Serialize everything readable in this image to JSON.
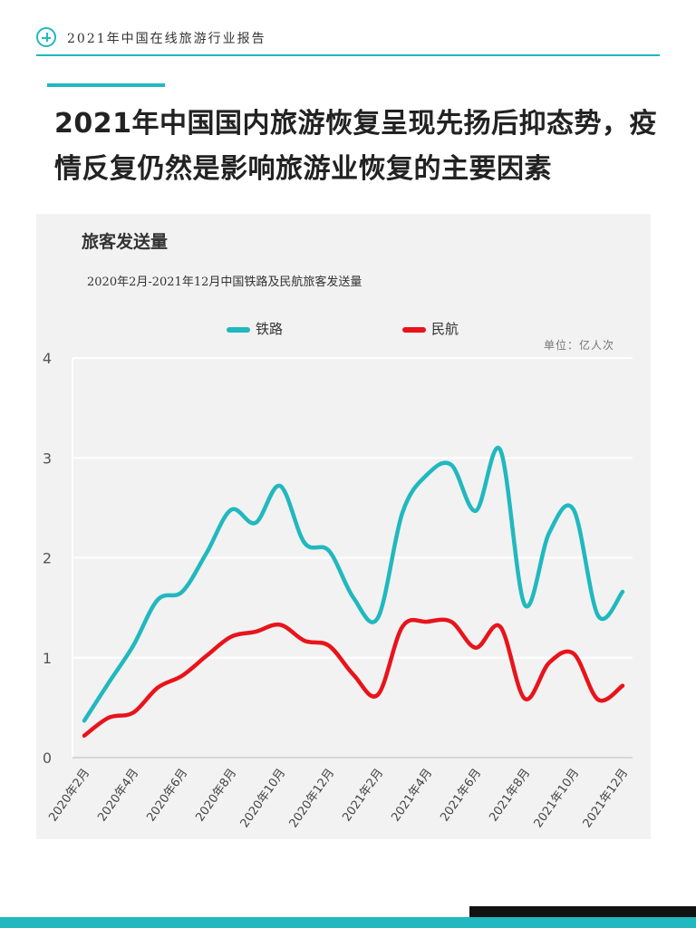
{
  "header": {
    "title": "2021年中国在线旅游行业报告"
  },
  "headline": "2021年中国国内旅游恢复呈现先扬后抑态势，疫情反复仍然是影响旅游业恢复的主要因素",
  "panel": {
    "title": "旅客发送量",
    "unit": "单位：亿人次"
  },
  "chart_data": {
    "type": "line",
    "title": "2020年2月-2021年12月中国铁路及民航旅客发送量",
    "xlabel": "",
    "ylabel": "",
    "ylim": [
      0,
      4
    ],
    "yticks": [
      "0",
      "1",
      "2",
      "3",
      "4"
    ],
    "grid": true,
    "legend": "top",
    "x": [
      "2020年2月",
      "2020年3月",
      "2020年4月",
      "2020年5月",
      "2020年6月",
      "2020年7月",
      "2020年8月",
      "2020年9月",
      "2020年10月",
      "2020年11月",
      "2020年12月",
      "2021年1月",
      "2021年2月",
      "2021年3月",
      "2021年4月",
      "2021年5月",
      "2021年6月",
      "2021年7月",
      "2021年8月",
      "2021年9月",
      "2021年10月",
      "2021年11月",
      "2021年12月"
    ],
    "xtick_labels": [
      "2020年2月",
      "2020年4月",
      "2020年6月",
      "2020年8月",
      "2020年10月",
      "2020年12月",
      "2021年2月",
      "2021年4月",
      "2021年6月",
      "2021年8月",
      "2021年10月",
      "2021年12月"
    ],
    "series": [
      {
        "name": "铁路",
        "color": "#21b8bf",
        "values": [
          0.37,
          0.75,
          1.12,
          1.58,
          1.66,
          2.05,
          2.48,
          2.35,
          2.72,
          2.15,
          2.07,
          1.6,
          1.4,
          2.45,
          2.83,
          2.93,
          2.47,
          3.08,
          1.53,
          2.25,
          2.48,
          1.42,
          1.66
        ]
      },
      {
        "name": "民航",
        "color": "#e8141b",
        "values": [
          0.22,
          0.4,
          0.45,
          0.7,
          0.82,
          1.02,
          1.21,
          1.26,
          1.33,
          1.17,
          1.12,
          0.83,
          0.63,
          1.31,
          1.36,
          1.36,
          1.1,
          1.31,
          0.59,
          0.95,
          1.04,
          0.58,
          0.72
        ]
      }
    ]
  }
}
